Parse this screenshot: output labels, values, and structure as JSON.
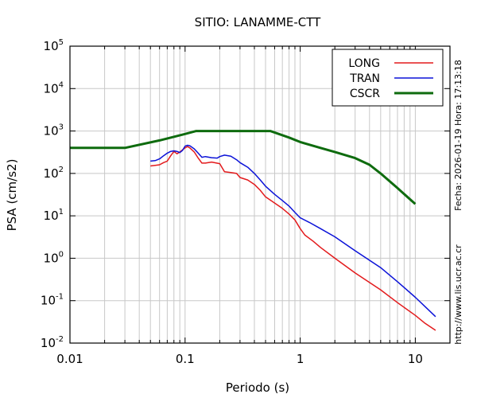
{
  "chart_data": {
    "type": "line",
    "title": "SITIO: LANAMME-CTT",
    "xlabel": "Periodo (s)",
    "ylabel": "PSA (cm/s2)",
    "x_scale": "log",
    "y_scale": "log",
    "xlim": [
      0.01,
      20
    ],
    "ylim": [
      0.01,
      100000
    ],
    "x_ticks": [
      {
        "value": 0.01,
        "label": "0.01"
      },
      {
        "value": 0.1,
        "label": "0.1"
      },
      {
        "value": 1,
        "label": "1"
      },
      {
        "value": 10,
        "label": "10"
      }
    ],
    "y_ticks": [
      {
        "value": 0.01,
        "base": "10",
        "exp": "-2"
      },
      {
        "value": 0.1,
        "base": "10",
        "exp": "-1"
      },
      {
        "value": 1,
        "base": "10",
        "exp": "0"
      },
      {
        "value": 10,
        "base": "10",
        "exp": "1"
      },
      {
        "value": 100,
        "base": "10",
        "exp": "2"
      },
      {
        "value": 1000,
        "base": "10",
        "exp": "3"
      },
      {
        "value": 10000,
        "base": "10",
        "exp": "4"
      },
      {
        "value": 100000,
        "base": "10",
        "exp": "5"
      }
    ],
    "grid": true,
    "legend_position": "top-right",
    "series": [
      {
        "name": "LONG",
        "color": "#e31a1c",
        "points": [
          [
            0.05,
            150
          ],
          [
            0.055,
            155
          ],
          [
            0.06,
            160
          ],
          [
            0.065,
            180
          ],
          [
            0.07,
            195
          ],
          [
            0.075,
            260
          ],
          [
            0.08,
            330
          ],
          [
            0.085,
            290
          ],
          [
            0.09,
            320
          ],
          [
            0.095,
            360
          ],
          [
            0.1,
            400
          ],
          [
            0.105,
            430
          ],
          [
            0.11,
            400
          ],
          [
            0.12,
            320
          ],
          [
            0.13,
            230
          ],
          [
            0.14,
            175
          ],
          [
            0.15,
            175
          ],
          [
            0.17,
            185
          ],
          [
            0.2,
            170
          ],
          [
            0.22,
            110
          ],
          [
            0.25,
            105
          ],
          [
            0.28,
            100
          ],
          [
            0.3,
            80
          ],
          [
            0.35,
            70
          ],
          [
            0.4,
            55
          ],
          [
            0.45,
            40
          ],
          [
            0.5,
            28
          ],
          [
            0.6,
            20
          ],
          [
            0.7,
            15
          ],
          [
            0.8,
            11
          ],
          [
            0.9,
            8
          ],
          [
            1,
            5
          ],
          [
            1.1,
            3.5
          ],
          [
            1.3,
            2.5
          ],
          [
            1.5,
            1.8
          ],
          [
            2,
            1
          ],
          [
            3,
            0.45
          ],
          [
            5,
            0.18
          ],
          [
            7,
            0.09
          ],
          [
            10,
            0.045
          ],
          [
            12,
            0.03
          ],
          [
            15,
            0.02
          ]
        ]
      },
      {
        "name": "TRAN",
        "color": "#0b12d8",
        "points": [
          [
            0.05,
            195
          ],
          [
            0.055,
            200
          ],
          [
            0.06,
            220
          ],
          [
            0.065,
            260
          ],
          [
            0.07,
            300
          ],
          [
            0.075,
            330
          ],
          [
            0.08,
            340
          ],
          [
            0.085,
            330
          ],
          [
            0.09,
            310
          ],
          [
            0.095,
            350
          ],
          [
            0.1,
            440
          ],
          [
            0.105,
            460
          ],
          [
            0.11,
            450
          ],
          [
            0.12,
            380
          ],
          [
            0.13,
            300
          ],
          [
            0.14,
            240
          ],
          [
            0.15,
            250
          ],
          [
            0.17,
            235
          ],
          [
            0.19,
            230
          ],
          [
            0.2,
            250
          ],
          [
            0.22,
            270
          ],
          [
            0.25,
            255
          ],
          [
            0.28,
            210
          ],
          [
            0.3,
            180
          ],
          [
            0.35,
            140
          ],
          [
            0.4,
            100
          ],
          [
            0.45,
            70
          ],
          [
            0.5,
            50
          ],
          [
            0.6,
            32
          ],
          [
            0.7,
            23
          ],
          [
            0.8,
            17
          ],
          [
            0.9,
            12
          ],
          [
            1,
            9
          ],
          [
            1.2,
            7
          ],
          [
            1.5,
            5
          ],
          [
            2,
            3.2
          ],
          [
            3,
            1.5
          ],
          [
            5,
            0.6
          ],
          [
            7,
            0.28
          ],
          [
            10,
            0.12
          ],
          [
            12,
            0.075
          ],
          [
            15,
            0.042
          ]
        ]
      },
      {
        "name": "CSCR",
        "color": "#0e6b0e",
        "points": [
          [
            0.01,
            400
          ],
          [
            0.03,
            400
          ],
          [
            0.06,
            600
          ],
          [
            0.1,
            850
          ],
          [
            0.125,
            1000
          ],
          [
            0.55,
            1000
          ],
          [
            0.8,
            700
          ],
          [
            1,
            550
          ],
          [
            1.5,
            400
          ],
          [
            2,
            320
          ],
          [
            3,
            230
          ],
          [
            4,
            160
          ],
          [
            5,
            100
          ],
          [
            7,
            45
          ],
          [
            10,
            19
          ]
        ]
      }
    ]
  },
  "side_text": {
    "fecha": "Fecha: 2026-01-19 Hora: 17:13:18",
    "url": "http://www.lis.ucr.ac.cr"
  }
}
